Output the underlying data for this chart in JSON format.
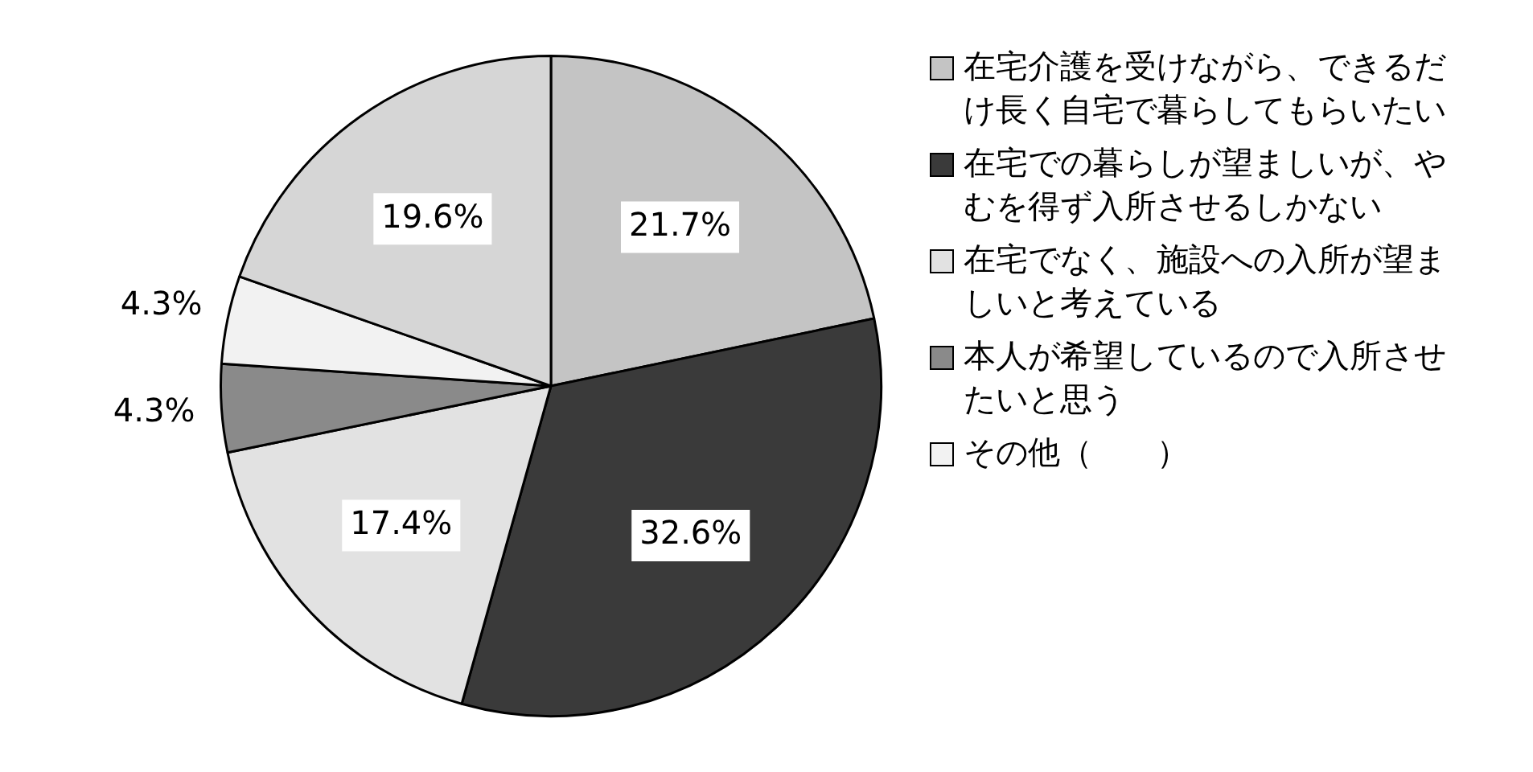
{
  "chart_data": {
    "type": "pie",
    "categories": [
      "在宅介護を受けながら、できるだけ長く自宅で暮らしてもらいたい",
      "在宅での暮らしが望ましいが、やむを得ず入所させるしかない",
      "在宅でなく、施設への入所が望ましいと考えている",
      "本人が希望しているので入所させたいと思う",
      "その他（　　）",
      null
    ],
    "values": [
      21.7,
      32.6,
      17.4,
      4.3,
      4.3,
      19.6
    ],
    "colors": [
      "#c4c4c4",
      "#3a3a3a",
      "#e2e2e2",
      "#8a8a8a",
      "#f2f2f2",
      "#d6d6d6"
    ],
    "value_labels": [
      "21.7%",
      "32.6%",
      "17.4%",
      "4.3%",
      "4.3%",
      "19.6%"
    ],
    "legend": "right"
  }
}
